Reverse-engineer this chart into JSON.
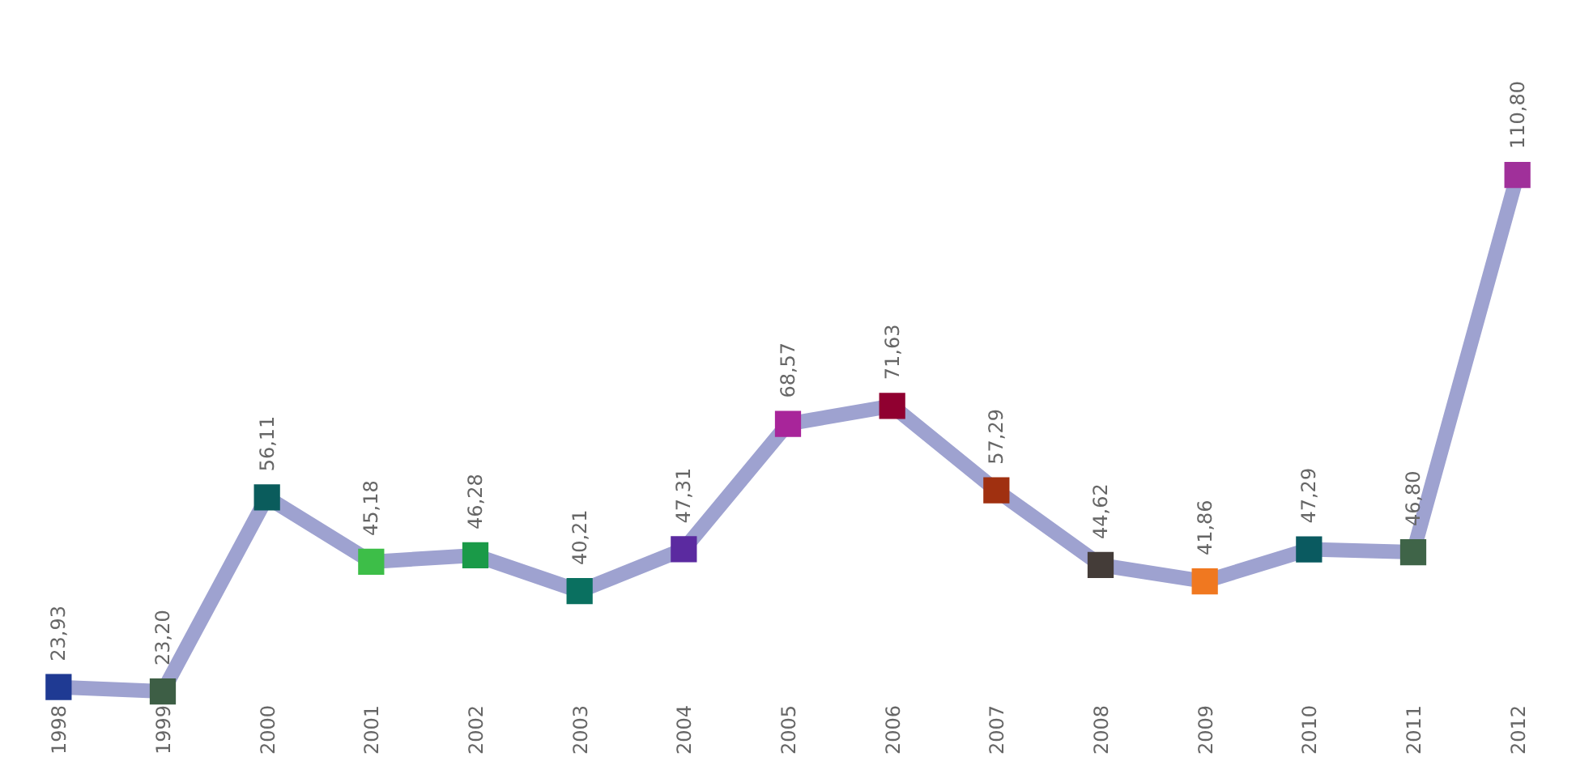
{
  "chart_data": {
    "type": "line",
    "categories": [
      "1998",
      "1999",
      "2000",
      "2001",
      "2002",
      "2003",
      "2004",
      "2005",
      "2006",
      "2007",
      "2008",
      "2009",
      "2010",
      "2011",
      "2012"
    ],
    "series": [
      {
        "color": "#9ea2d0",
        "values": [
          23.93,
          23.2,
          56.11,
          45.18,
          46.28,
          40.21,
          47.31,
          68.57,
          71.63,
          57.29,
          44.62,
          41.86,
          47.29,
          46.8,
          110.8
        ],
        "value_labels": [
          "23,93",
          "23,20",
          "56,11",
          "45,18",
          "46,28",
          "40,21",
          "47,31",
          "68,57",
          "71,63",
          "57,29",
          "44,62",
          "41,86",
          "47,29",
          "46,80",
          "110,80"
        ]
      }
    ],
    "colors": [
      "#1f3a93",
      "#3d5e45",
      "#0a5c5c",
      "#3dbe48",
      "#1a9a48",
      "#0a7060",
      "#5b2aa0",
      "#a8259a",
      "#900030",
      "#a03010",
      "#443c38",
      "#f07820",
      "#0a5a60",
      "#3f6448",
      "#a0309a"
    ],
    "marker": "square"
  }
}
